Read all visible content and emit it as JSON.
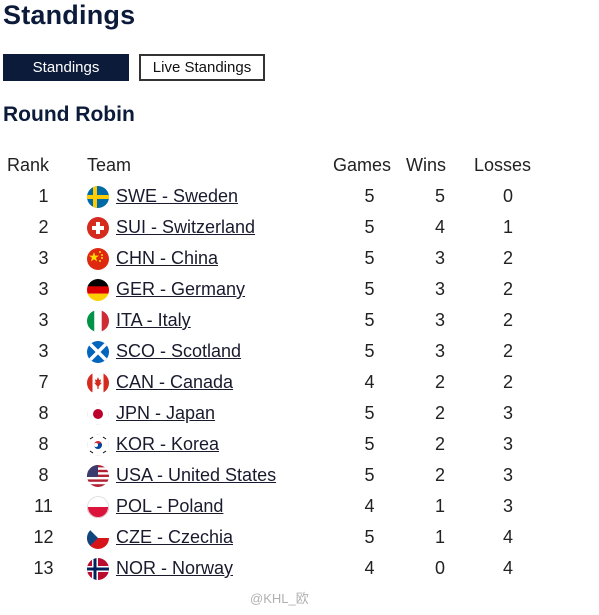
{
  "page": {
    "title": "Standings"
  },
  "tabs": [
    {
      "label": "Standings",
      "active": true
    },
    {
      "label": "Live Standings",
      "active": false
    }
  ],
  "section": {
    "title": "Round Robin"
  },
  "table": {
    "headers": {
      "rank": "Rank",
      "team": "Team",
      "games": "Games",
      "wins": "Wins",
      "losses": "Losses"
    },
    "rows": [
      {
        "rank": "1",
        "team": "SWE - Sweden",
        "flag": "flag-sweden-icon",
        "games": "5",
        "wins": "5",
        "losses": "0"
      },
      {
        "rank": "2",
        "team": "SUI - Switzerland",
        "flag": "flag-switzerland-icon",
        "games": "5",
        "wins": "4",
        "losses": "1"
      },
      {
        "rank": "3",
        "team": "CHN - China",
        "flag": "flag-china-icon",
        "games": "5",
        "wins": "3",
        "losses": "2"
      },
      {
        "rank": "3",
        "team": "GER - Germany",
        "flag": "flag-germany-icon",
        "games": "5",
        "wins": "3",
        "losses": "2"
      },
      {
        "rank": "3",
        "team": "ITA - Italy",
        "flag": "flag-italy-icon",
        "games": "5",
        "wins": "3",
        "losses": "2"
      },
      {
        "rank": "3",
        "team": "SCO - Scotland",
        "flag": "flag-scotland-icon",
        "games": "5",
        "wins": "3",
        "losses": "2"
      },
      {
        "rank": "7",
        "team": "CAN - Canada",
        "flag": "flag-canada-icon",
        "games": "4",
        "wins": "2",
        "losses": "2"
      },
      {
        "rank": "8",
        "team": "JPN - Japan",
        "flag": "flag-japan-icon",
        "games": "5",
        "wins": "2",
        "losses": "3"
      },
      {
        "rank": "8",
        "team": "KOR - Korea",
        "flag": "flag-korea-icon",
        "games": "5",
        "wins": "2",
        "losses": "3"
      },
      {
        "rank": "8",
        "team": "USA - United States",
        "flag": "flag-usa-icon",
        "games": "5",
        "wins": "2",
        "losses": "3"
      },
      {
        "rank": "11",
        "team": "POL - Poland",
        "flag": "flag-poland-icon",
        "games": "4",
        "wins": "1",
        "losses": "3"
      },
      {
        "rank": "12",
        "team": "CZE - Czechia",
        "flag": "flag-czechia-icon",
        "games": "5",
        "wins": "1",
        "losses": "4"
      },
      {
        "rank": "13",
        "team": "NOR - Norway",
        "flag": "flag-norway-icon",
        "games": "4",
        "wins": "0",
        "losses": "4"
      }
    ]
  },
  "watermark": {
    "text": "@KHL_欧"
  },
  "colors": {
    "navy": "#0c1b3a",
    "white": "#ffffff"
  }
}
